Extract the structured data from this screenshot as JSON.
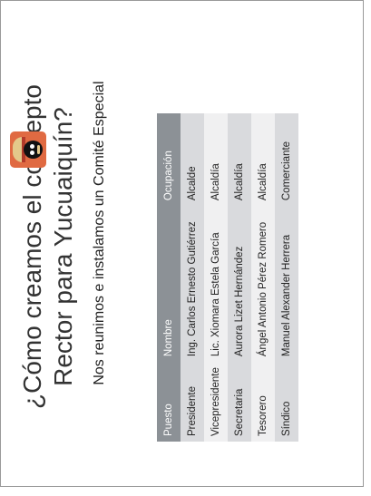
{
  "slide": {
    "title": "¿Cómo creamos el concepto Rector para Yucuaiquín?",
    "subtitle": "Nos reunimos e instalamos un Comité Especial"
  },
  "table": {
    "headers": [
      "Puesto",
      "Nombre",
      "Ocupación"
    ],
    "rows": [
      [
        "Presidente",
        "Ing. Carlos Ernesto Gutiérrez",
        "Alcalde"
      ],
      [
        "Vicepresidente",
        "Lic. Xiomara Estela García",
        "Alcaldía"
      ],
      [
        "Secretaria",
        "Aurora Lizet Hernández",
        "Alcaldía"
      ],
      [
        "Tesorero",
        "Ángel Antonio Pérez Romero",
        "Alcaldía"
      ],
      [
        "Síndico",
        "Manuel Alexander Herrera",
        "Comerciante"
      ]
    ]
  },
  "logo": {
    "icon": "pirate-face-icon",
    "color": "#e06a42"
  }
}
